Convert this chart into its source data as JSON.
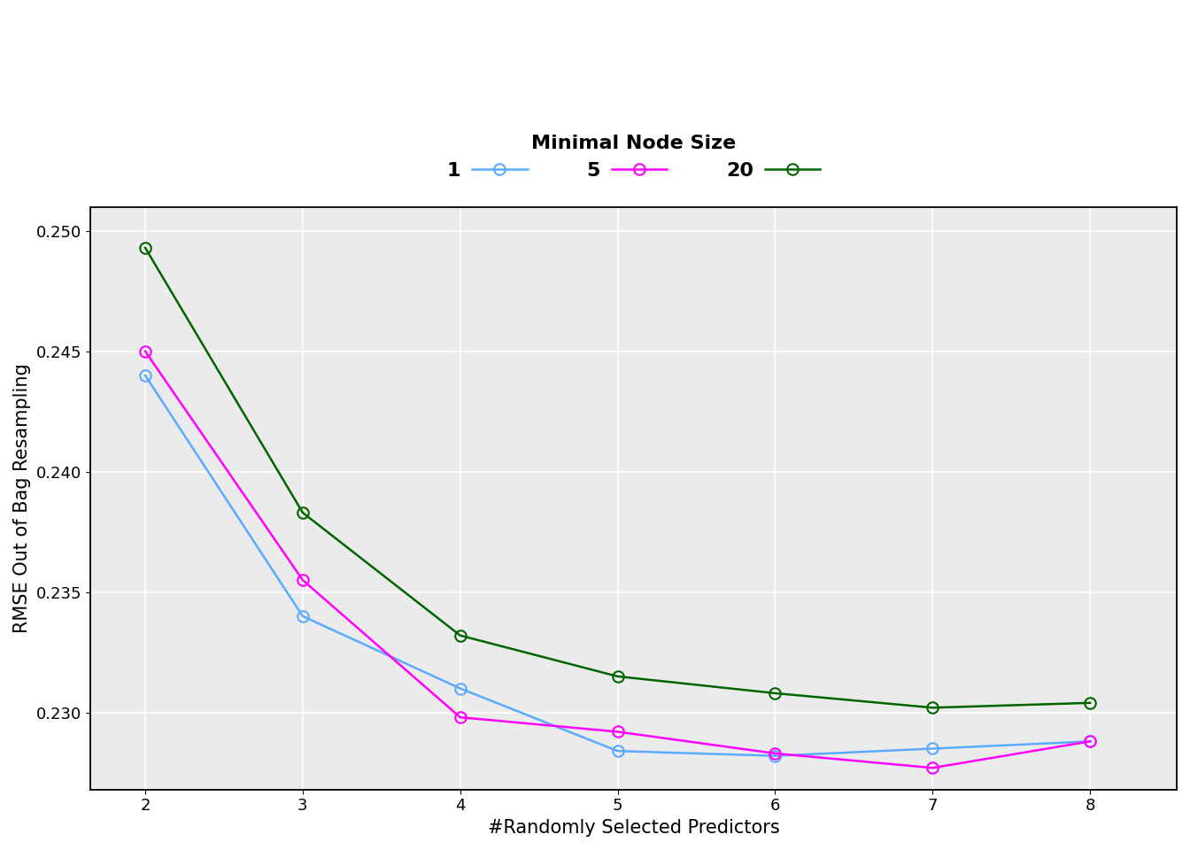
{
  "x": [
    2,
    3,
    4,
    5,
    6,
    7,
    8
  ],
  "node1": [
    0.244,
    0.234,
    0.231,
    0.2284,
    0.2282,
    0.2285,
    0.2288
  ],
  "node5": [
    0.245,
    0.2355,
    0.2298,
    0.2292,
    0.2283,
    0.2277,
    0.2288
  ],
  "node20": [
    0.2493,
    0.2383,
    0.2332,
    0.2315,
    0.2308,
    0.2302,
    0.2304
  ],
  "color1": "#5aabff",
  "color5": "#ff00ff",
  "color20": "#006400",
  "legend_title": "Minimal Node Size",
  "legend_labels": [
    "1",
    "5",
    "20"
  ],
  "xlabel": "#Randomly Selected Predictors",
  "ylabel": "RMSE Out of Bag Resampling",
  "ylim": [
    0.2268,
    0.251
  ],
  "xlim": [
    1.65,
    8.55
  ],
  "yticks": [
    0.23,
    0.235,
    0.24,
    0.245,
    0.25
  ],
  "xticks": [
    2,
    3,
    4,
    5,
    6,
    7,
    8
  ],
  "background_color": "#ebebeb",
  "grid_color": "#ffffff",
  "title_fontsize": 16,
  "axis_label_fontsize": 15,
  "tick_fontsize": 13,
  "legend_number_fontsize": 16,
  "legend_fontsize": 13,
  "marker_size": 9,
  "linewidth": 1.8
}
